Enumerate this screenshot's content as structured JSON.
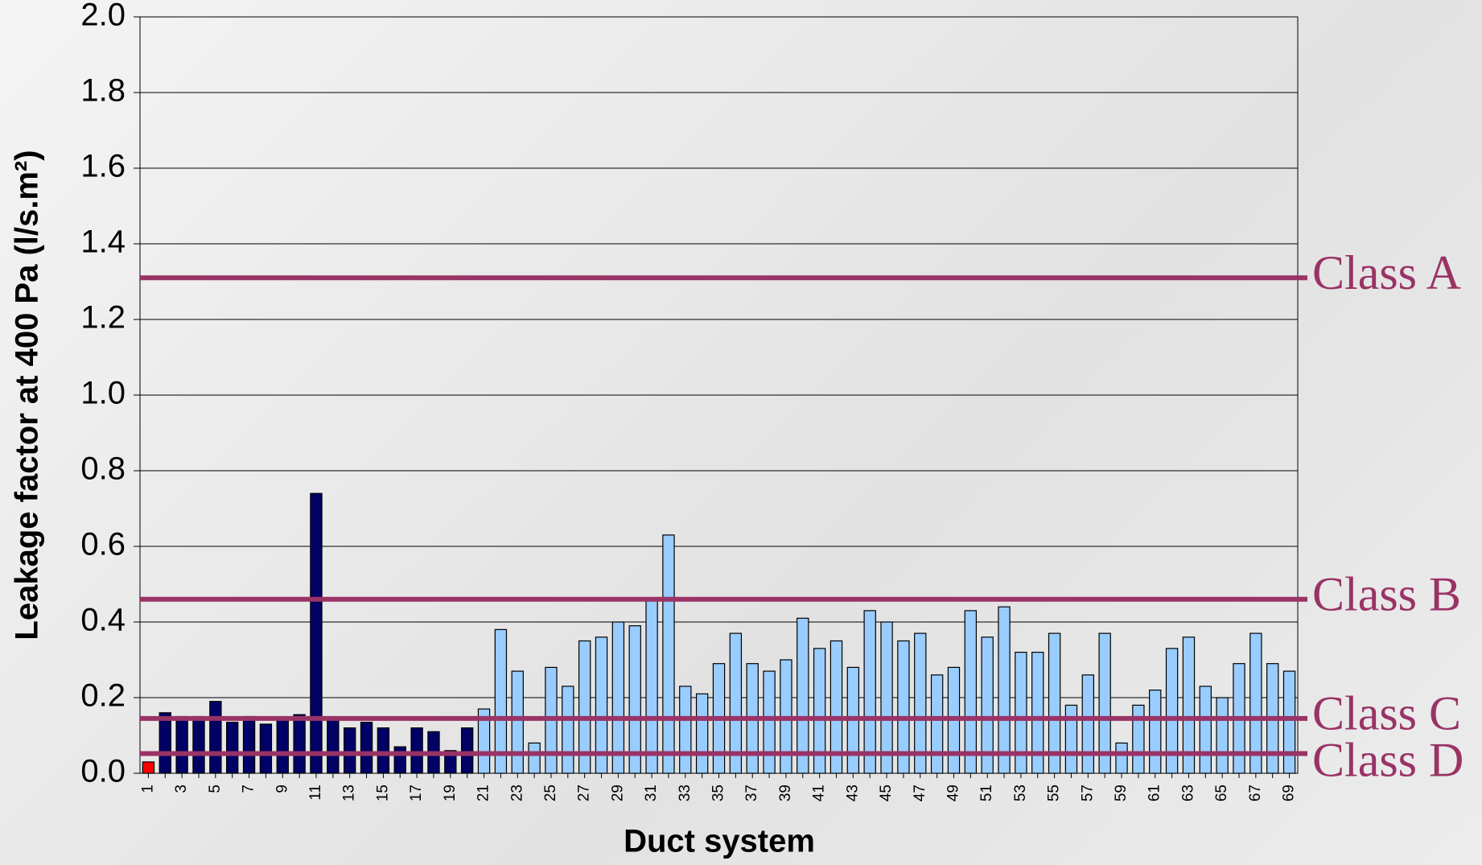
{
  "chart_data": {
    "type": "bar",
    "x_label": "Duct system",
    "y_label": "Leakage factor at 400 Pa (l/s.m²)",
    "categories": [
      "1",
      null,
      "3",
      null,
      "5",
      null,
      "7",
      null,
      "9",
      null,
      "11",
      null,
      "13",
      null,
      "15",
      null,
      "17",
      null,
      "19",
      null,
      "21",
      null,
      "23",
      null,
      "25",
      null,
      "27",
      null,
      "29",
      null,
      "31",
      null,
      "33",
      null,
      "35",
      null,
      "37",
      null,
      "39",
      null,
      "41",
      null,
      "43",
      null,
      "45",
      null,
      "47",
      null,
      "49",
      null,
      "51",
      null,
      "53",
      null,
      "55",
      null,
      "57",
      null,
      "59",
      null,
      "61",
      null,
      "63",
      null,
      "65",
      null,
      "67",
      null,
      "69"
    ],
    "values": [
      0.03,
      0.16,
      0.15,
      0.15,
      0.19,
      0.135,
      0.15,
      0.13,
      0.14,
      0.155,
      0.74,
      0.14,
      0.12,
      0.135,
      0.12,
      0.07,
      0.12,
      0.11,
      0.06,
      0.12,
      0.17,
      0.38,
      0.27,
      0.08,
      0.28,
      0.23,
      0.35,
      0.36,
      0.4,
      0.39,
      0.46,
      0.63,
      0.23,
      0.21,
      0.29,
      0.37,
      0.29,
      0.27,
      0.3,
      0.41,
      0.33,
      0.35,
      0.28,
      0.43,
      0.4,
      0.35,
      0.37,
      0.26,
      0.28,
      0.43,
      0.36,
      0.44,
      0.32,
      0.32,
      0.37,
      0.18,
      0.26,
      0.37,
      0.08,
      0.18,
      0.22,
      0.33,
      0.36,
      0.23,
      0.2,
      0.29,
      0.37,
      0.29,
      0.27
    ],
    "colors": [
      "#ff0000",
      "#000066",
      "#000066",
      "#000066",
      "#000066",
      "#000066",
      "#000066",
      "#000066",
      "#000066",
      "#000066",
      "#000066",
      "#000066",
      "#000066",
      "#000066",
      "#000066",
      "#000066",
      "#000066",
      "#000066",
      "#000066",
      "#000066",
      "#99ccff",
      "#99ccff",
      "#99ccff",
      "#99ccff",
      "#99ccff",
      "#99ccff",
      "#99ccff",
      "#99ccff",
      "#99ccff",
      "#99ccff",
      "#99ccff",
      "#99ccff",
      "#99ccff",
      "#99ccff",
      "#99ccff",
      "#99ccff",
      "#99ccff",
      "#99ccff",
      "#99ccff",
      "#99ccff",
      "#99ccff",
      "#99ccff",
      "#99ccff",
      "#99ccff",
      "#99ccff",
      "#99ccff",
      "#99ccff",
      "#99ccff",
      "#99ccff",
      "#99ccff",
      "#99ccff",
      "#99ccff",
      "#99ccff",
      "#99ccff",
      "#99ccff",
      "#99ccff",
      "#99ccff",
      "#99ccff",
      "#99ccff",
      "#99ccff",
      "#99ccff",
      "#99ccff",
      "#99ccff",
      "#99ccff",
      "#99ccff",
      "#99ccff",
      "#99ccff",
      "#99ccff",
      "#99ccff"
    ],
    "ylim": [
      0,
      2
    ],
    "yticks": [
      {
        "value": 0,
        "label": "0.0"
      },
      {
        "value": 0.2,
        "label": "0.2"
      },
      {
        "value": 0.4,
        "label": "0.4"
      },
      {
        "value": 0.6,
        "label": "0.6"
      },
      {
        "value": 0.8,
        "label": "0.8"
      },
      {
        "value": 1,
        "label": "1.0"
      },
      {
        "value": 1.2,
        "label": "1.2"
      },
      {
        "value": 1.4,
        "label": "1.4"
      },
      {
        "value": 1.6,
        "label": "1.6"
      },
      {
        "value": 1.8,
        "label": "1.8"
      },
      {
        "value": 2,
        "label": "2.0"
      }
    ],
    "grid": true,
    "reference_lines": [
      {
        "label": "Class A",
        "value": 1.31,
        "color": "#993366"
      },
      {
        "label": "Class B",
        "value": 0.46,
        "color": "#993366"
      },
      {
        "label": "Class C",
        "value": 0.145,
        "color": "#993366"
      },
      {
        "label": "Class D",
        "value": 0.052,
        "color": "#993366"
      }
    ]
  }
}
